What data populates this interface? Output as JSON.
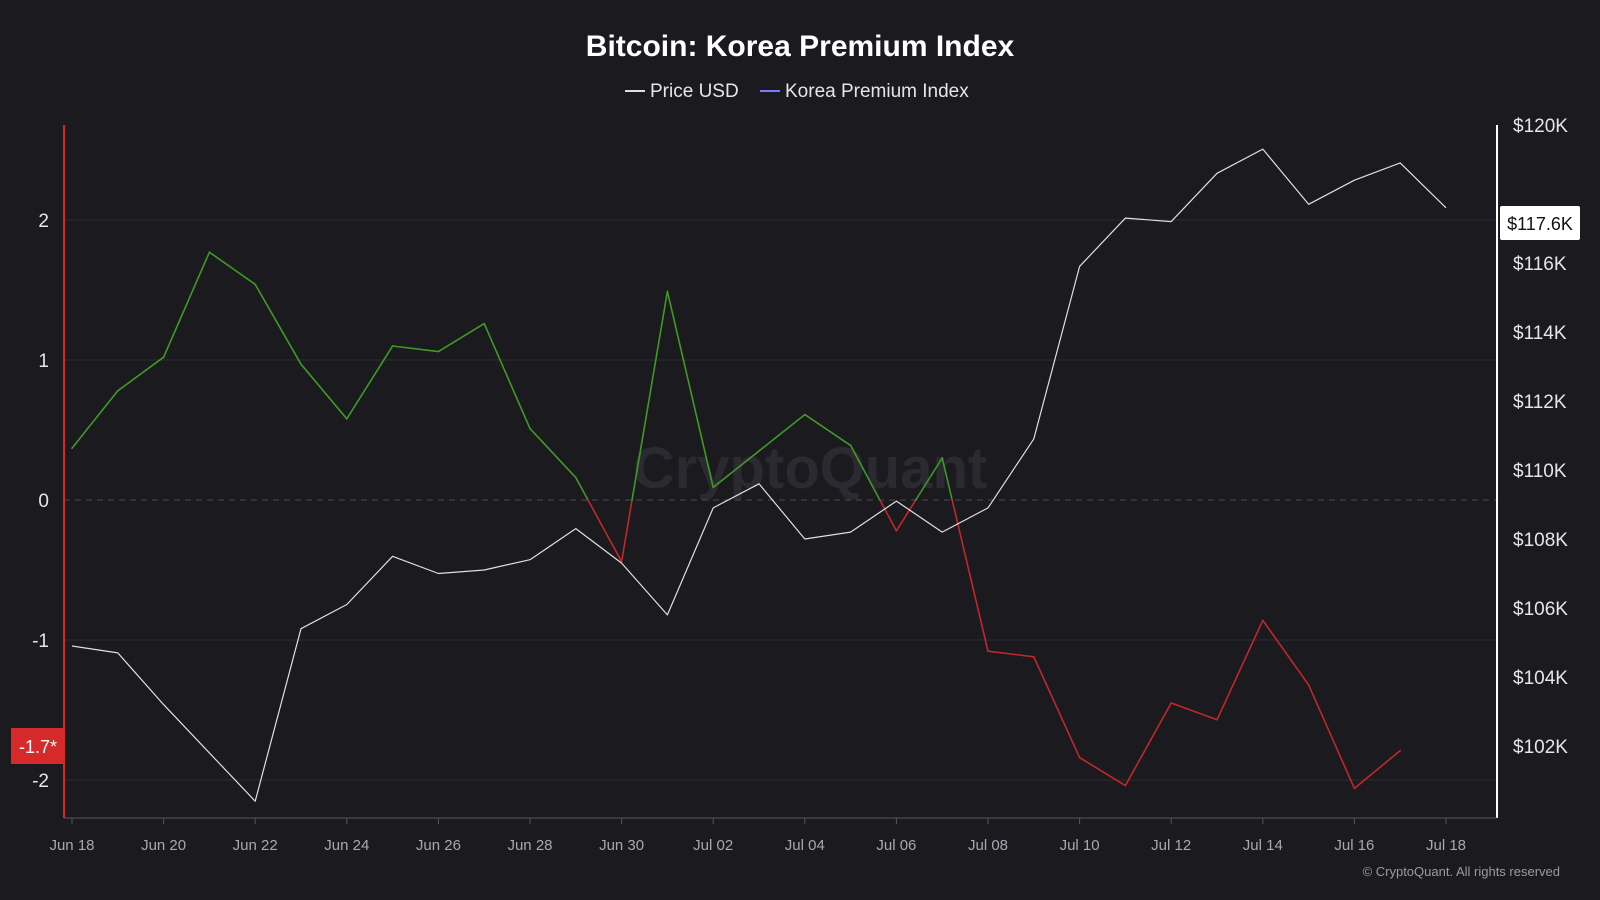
{
  "chart_data": {
    "type": "line",
    "title": "Bitcoin: Korea Premium Index",
    "legend": [
      {
        "name": "Price USD",
        "color": "#e0e0e0"
      },
      {
        "name": "Korea Premium Index",
        "color": "#7b7bff"
      }
    ],
    "legend_position": "top-center",
    "x_dates": [
      "Jun 18",
      "Jun 19",
      "Jun 20",
      "Jun 21",
      "Jun 22",
      "Jun 23",
      "Jun 24",
      "Jun 25",
      "Jun 26",
      "Jun 27",
      "Jun 28",
      "Jun 29",
      "Jun 30",
      "Jul 01",
      "Jul 02",
      "Jul 03",
      "Jul 04",
      "Jul 05",
      "Jul 06",
      "Jul 07",
      "Jul 08",
      "Jul 09",
      "Jul 10",
      "Jul 11",
      "Jul 12",
      "Jul 13",
      "Jul 14",
      "Jul 15",
      "Jul 16",
      "Jul 17",
      "Jul 18"
    ],
    "x_ticks": [
      "Jun 18",
      "Jun 20",
      "Jun 22",
      "Jun 24",
      "Jun 26",
      "Jun 28",
      "Jun 30",
      "Jul 02",
      "Jul 04",
      "Jul 06",
      "Jul 08",
      "Jul 10",
      "Jul 12",
      "Jul 14",
      "Jul 16",
      "Jul 18"
    ],
    "left_axis": {
      "ticks": [
        2,
        1,
        0,
        -1,
        -2
      ],
      "ylim": [
        -2.3,
        2.7
      ]
    },
    "right_axis": {
      "ticks": [
        "$120K",
        "$116K",
        "$114K",
        "$112K",
        "$110K",
        "$108K",
        "$106K",
        "$104K",
        "$102K"
      ],
      "tick_values": [
        120000,
        116000,
        114000,
        112000,
        110000,
        108000,
        106000,
        104000,
        102000
      ],
      "ylim": [
        100000,
        120500
      ]
    },
    "series": [
      {
        "name": "Korea Premium Index",
        "axis": "left",
        "positive_color": "#3f9a25",
        "negative_color": "#c0282a",
        "values": [
          0.37,
          0.78,
          1.02,
          1.77,
          1.54,
          0.97,
          0.58,
          1.1,
          1.06,
          1.26,
          0.51,
          0.16,
          -0.44,
          1.49,
          0.09,
          0.35,
          0.61,
          0.39,
          -0.22,
          0.3,
          -1.08,
          -1.12,
          -1.84,
          -2.04,
          -1.45,
          -1.57,
          -0.86,
          -1.32,
          -2.06,
          -1.79,
          null
        ]
      },
      {
        "name": "Price USD",
        "axis": "right",
        "color": "#e0e0e0",
        "values": [
          104900,
          104700,
          103200,
          101800,
          100400,
          105400,
          106100,
          107500,
          107000,
          107100,
          107400,
          108300,
          107300,
          105800,
          108900,
          109600,
          108000,
          108200,
          109100,
          108200,
          108900,
          110900,
          115900,
          117300,
          117200,
          118600,
          119300,
          117700,
          118400,
          118900,
          117600
        ]
      }
    ],
    "current_left_label": "-1.7*",
    "current_right_label": "$117.6K",
    "watermark": "CryptoQuant",
    "copyright": "© CryptoQuant. All rights reserved",
    "grid": true
  }
}
